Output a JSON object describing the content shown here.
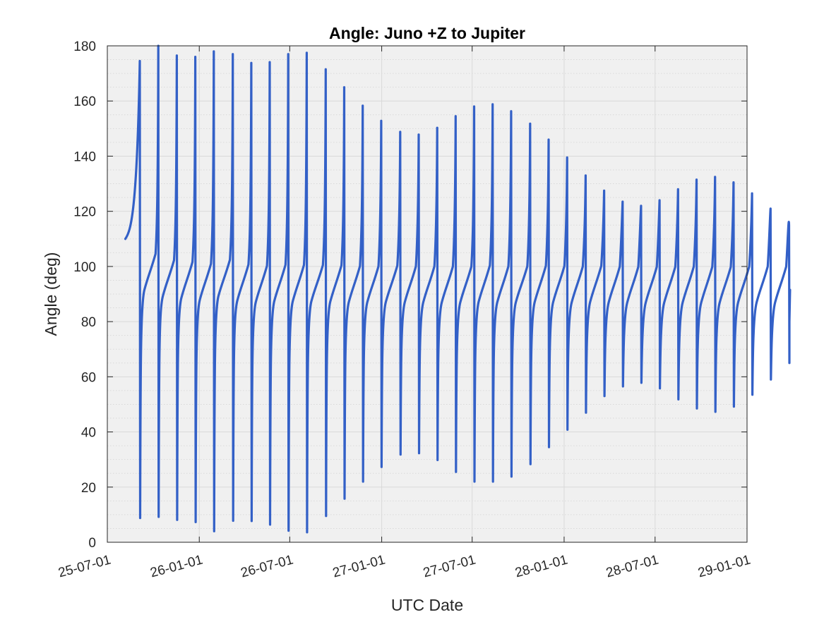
{
  "chart_data": {
    "type": "line",
    "title": "Angle: Juno +Z to Jupiter",
    "xlabel": "UTC Date",
    "ylabel": "Angle (deg)",
    "x_axis_type": "date",
    "xlim": [
      "2025-07-01",
      "2029-01-01"
    ],
    "ylim": [
      0,
      180
    ],
    "xticks": [
      "2025-07-01",
      "2026-01-01",
      "2026-07-01",
      "2027-01-01",
      "2027-07-01",
      "2028-01-01",
      "2028-07-01",
      "2029-01-01"
    ],
    "xtick_labels": [
      "25-07-01",
      "26-01-01",
      "26-07-01",
      "27-01-01",
      "27-07-01",
      "28-01-01",
      "28-07-01",
      "29-01-01"
    ],
    "yticks": [
      0,
      20,
      40,
      60,
      80,
      100,
      120,
      140,
      160,
      180
    ],
    "ytick_labels": [
      "0",
      "20",
      "40",
      "60",
      "80",
      "100",
      "120",
      "140",
      "160",
      "180"
    ],
    "grid": true,
    "minor_grid": true,
    "legend": "none",
    "colors": {
      "line": "#3360c7",
      "plot_background": "#f0f0f0",
      "grid": "#d9d9d9",
      "axes": "#262626"
    },
    "series": [
      {
        "start": {
          "date": "2025-08-06",
          "value": 110
        },
        "perijoves": [
          {
            "date": "2025-09-04",
            "max": 174.5,
            "min": 8.8
          },
          {
            "date": "2025-10-11",
            "max": 180.0,
            "min": 9.2
          },
          {
            "date": "2025-11-17",
            "max": 176.5,
            "min": 8.1
          },
          {
            "date": "2025-12-24",
            "max": 176.0,
            "min": 7.3
          },
          {
            "date": "2026-01-30",
            "max": 178.0,
            "min": 4.0
          },
          {
            "date": "2026-03-09",
            "max": 177.0,
            "min": 7.8
          },
          {
            "date": "2026-04-15",
            "max": 173.8,
            "min": 7.7
          },
          {
            "date": "2026-05-22",
            "max": 174.1,
            "min": 6.4
          },
          {
            "date": "2026-06-28",
            "max": 177.0,
            "min": 4.2
          },
          {
            "date": "2026-08-04",
            "max": 177.5,
            "min": 3.6
          },
          {
            "date": "2026-09-11",
            "max": 171.5,
            "min": 9.5
          },
          {
            "date": "2026-10-18",
            "max": 165.0,
            "min": 15.8
          },
          {
            "date": "2026-11-24",
            "max": 158.3,
            "min": 22.0
          },
          {
            "date": "2026-12-31",
            "max": 152.8,
            "min": 27.3
          },
          {
            "date": "2027-02-07",
            "max": 148.8,
            "min": 31.8
          },
          {
            "date": "2027-03-16",
            "max": 147.8,
            "min": 32.3
          },
          {
            "date": "2027-04-22",
            "max": 150.3,
            "min": 29.8
          },
          {
            "date": "2027-05-29",
            "max": 154.5,
            "min": 25.5
          },
          {
            "date": "2027-07-05",
            "max": 158.0,
            "min": 22.0
          },
          {
            "date": "2027-08-11",
            "max": 158.8,
            "min": 22.0
          },
          {
            "date": "2027-09-17",
            "max": 156.3,
            "min": 23.8
          },
          {
            "date": "2027-10-25",
            "max": 151.8,
            "min": 28.3
          },
          {
            "date": "2027-12-01",
            "max": 146.0,
            "min": 34.5
          },
          {
            "date": "2028-01-07",
            "max": 139.5,
            "min": 40.8
          },
          {
            "date": "2028-02-13",
            "max": 133.0,
            "min": 47.0
          },
          {
            "date": "2028-03-21",
            "max": 127.5,
            "min": 53.0
          },
          {
            "date": "2028-04-27",
            "max": 123.5,
            "min": 56.5
          },
          {
            "date": "2028-06-03",
            "max": 122.0,
            "min": 57.8
          },
          {
            "date": "2028-07-10",
            "max": 124.0,
            "min": 55.8
          },
          {
            "date": "2028-08-16",
            "max": 128.0,
            "min": 51.8
          },
          {
            "date": "2028-09-22",
            "max": 131.5,
            "min": 48.5
          },
          {
            "date": "2028-10-29",
            "max": 132.5,
            "min": 47.3
          },
          {
            "date": "2028-12-05",
            "max": 130.5,
            "min": 49.2
          },
          {
            "date": "2029-01-11",
            "max": 126.5,
            "min": 53.5
          },
          {
            "date": "2029-02-17",
            "max": 121.0,
            "min": 59.0
          },
          {
            "date": "2029-03-26",
            "max": 115.0,
            "min": 65.0
          }
        ],
        "end": {
          "date": "2029-03-28",
          "value": 91.5
        }
      }
    ]
  }
}
